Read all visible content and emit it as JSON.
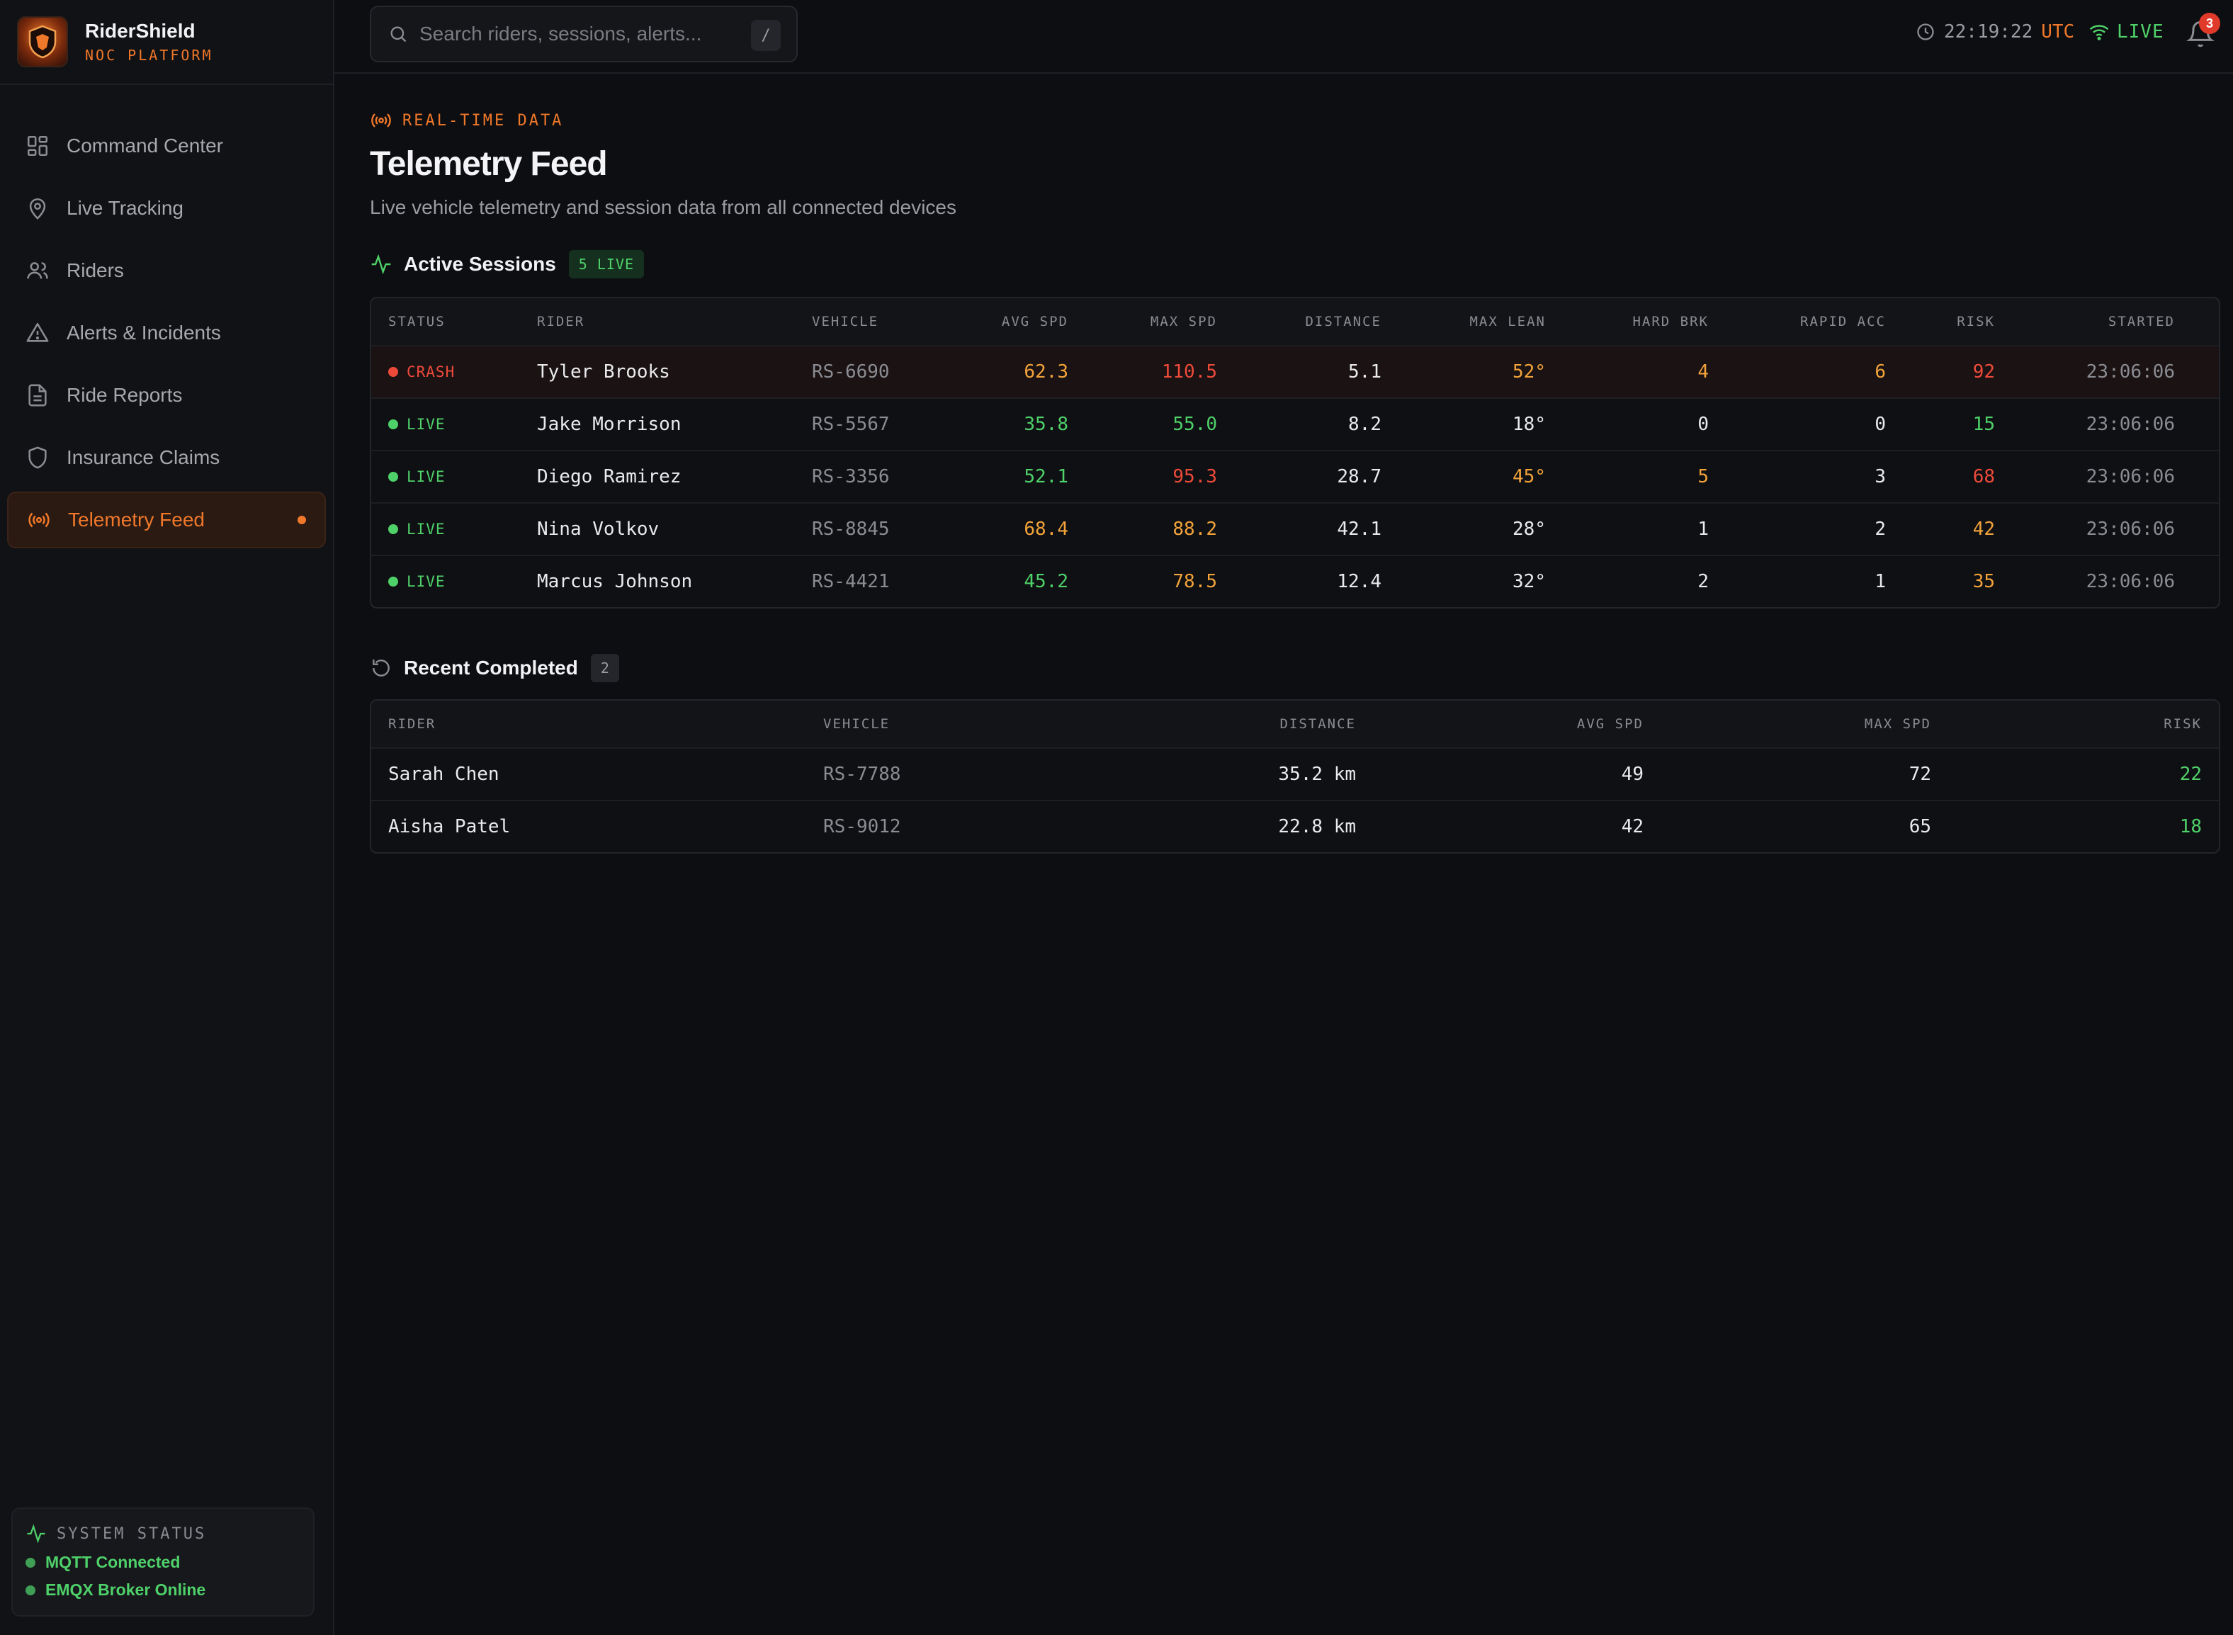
{
  "brand": {
    "name": "RiderShield",
    "subtitle": "NOC PLATFORM"
  },
  "nav": [
    {
      "label": "Command Center",
      "icon": "grid-icon",
      "active": false
    },
    {
      "label": "Live Tracking",
      "icon": "map-pin-icon",
      "active": false
    },
    {
      "label": "Riders",
      "icon": "users-icon",
      "active": false
    },
    {
      "label": "Alerts & Incidents",
      "icon": "warning-icon",
      "active": false
    },
    {
      "label": "Ride Reports",
      "icon": "document-icon",
      "active": false
    },
    {
      "label": "Insurance Claims",
      "icon": "shield-icon",
      "active": false
    },
    {
      "label": "Telemetry Feed",
      "icon": "broadcast-icon",
      "active": true
    }
  ],
  "system_status": {
    "title": "SYSTEM STATUS",
    "items": [
      "MQTT Connected",
      "EMQX Broker Online"
    ]
  },
  "topbar": {
    "search_placeholder": "Search riders, sessions, alerts...",
    "shortcut": "/",
    "time": "22:19:22",
    "tz": "UTC",
    "live_label": "LIVE",
    "notification_count": "3"
  },
  "page": {
    "eyebrow": "REAL-TIME DATA",
    "title": "Telemetry Feed",
    "subtitle": "Live vehicle telemetry and session data from all connected devices"
  },
  "active": {
    "title": "Active Sessions",
    "badge": "5 LIVE",
    "columns": [
      "STATUS",
      "RIDER",
      "VEHICLE",
      "AVG SPD",
      "MAX SPD",
      "DISTANCE",
      "MAX LEAN",
      "HARD BRK",
      "RAPID ACC",
      "RISK",
      "STARTED"
    ],
    "rows": [
      {
        "status": "CRASH",
        "rider": "Tyler Brooks",
        "vehicle": "RS-6690",
        "avg": "62.3",
        "max": "110.5",
        "dist": "5.1",
        "lean": "52°",
        "brk": "4",
        "acc": "6",
        "risk": "92",
        "started": "23:06:06"
      },
      {
        "status": "LIVE",
        "rider": "Jake Morrison",
        "vehicle": "RS-5567",
        "avg": "35.8",
        "max": "55.0",
        "dist": "8.2",
        "lean": "18°",
        "brk": "0",
        "acc": "0",
        "risk": "15",
        "started": "23:06:06"
      },
      {
        "status": "LIVE",
        "rider": "Diego Ramirez",
        "vehicle": "RS-3356",
        "avg": "52.1",
        "max": "95.3",
        "dist": "28.7",
        "lean": "45°",
        "brk": "5",
        "acc": "3",
        "risk": "68",
        "started": "23:06:06"
      },
      {
        "status": "LIVE",
        "rider": "Nina Volkov",
        "vehicle": "RS-8845",
        "avg": "68.4",
        "max": "88.2",
        "dist": "42.1",
        "lean": "28°",
        "brk": "1",
        "acc": "2",
        "risk": "42",
        "started": "23:06:06"
      },
      {
        "status": "LIVE",
        "rider": "Marcus Johnson",
        "vehicle": "RS-4421",
        "avg": "45.2",
        "max": "78.5",
        "dist": "12.4",
        "lean": "32°",
        "brk": "2",
        "acc": "1",
        "risk": "35",
        "started": "23:06:06"
      }
    ]
  },
  "completed": {
    "title": "Recent Completed",
    "badge": "2",
    "columns": [
      "RIDER",
      "VEHICLE",
      "DISTANCE",
      "AVG SPD",
      "MAX SPD",
      "RISK"
    ],
    "rows": [
      {
        "rider": "Sarah Chen",
        "vehicle": "RS-7788",
        "dist": "35.2 km",
        "avg": "49",
        "max": "72",
        "risk": "22"
      },
      {
        "rider": "Aisha Patel",
        "vehicle": "RS-9012",
        "dist": "22.8 km",
        "avg": "42",
        "max": "65",
        "risk": "18"
      }
    ]
  },
  "colors": {
    "accent": "#f0782a",
    "green": "#4fd16a",
    "red": "#ee4a3a",
    "orange": "#f2a33a",
    "background": "#0d0e11"
  }
}
